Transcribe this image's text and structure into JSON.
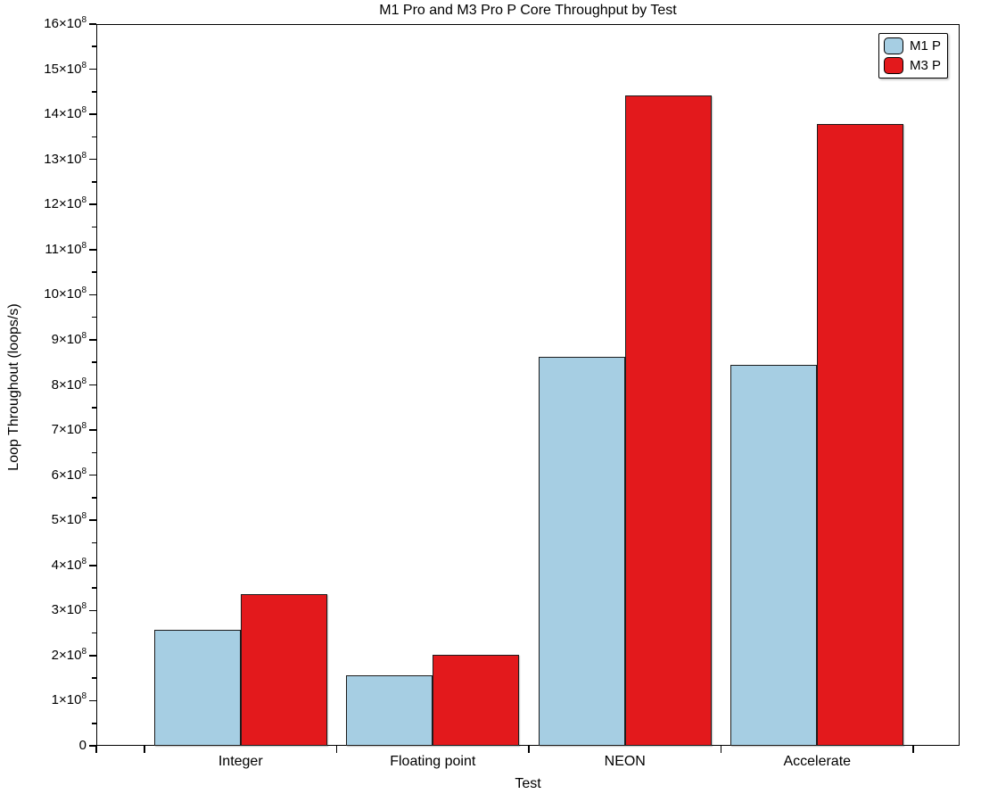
{
  "chart_data": {
    "type": "bar",
    "title": "M1 Pro and M3 Pro P Core Throughput by Test",
    "xlabel": "Test",
    "ylabel": "Loop Throughout (loops/s)",
    "categories": [
      "Integer",
      "Floating point",
      "NEON",
      "Accelerate"
    ],
    "series": [
      {
        "name": "M1 P",
        "color": "#A6CEE3",
        "values": [
          258000000,
          156000000,
          862000000,
          845000000
        ]
      },
      {
        "name": "M3 P",
        "color": "#E3191C",
        "values": [
          337000000,
          201000000,
          1441000000,
          1378000000
        ]
      }
    ],
    "ylim": [
      0,
      1600000000
    ],
    "y_major_step": 100000000,
    "y_minor_step": 50000000,
    "y_ticks": [
      {
        "value": 0,
        "label": "0"
      },
      {
        "value": 100000000,
        "label": "1×10^8"
      },
      {
        "value": 200000000,
        "label": "2×10^8"
      },
      {
        "value": 300000000,
        "label": "3×10^8"
      },
      {
        "value": 400000000,
        "label": "4×10^8"
      },
      {
        "value": 500000000,
        "label": "5×10^8"
      },
      {
        "value": 600000000,
        "label": "6×10^8"
      },
      {
        "value": 700000000,
        "label": "7×10^8"
      },
      {
        "value": 800000000,
        "label": "8×10^8"
      },
      {
        "value": 900000000,
        "label": "9×10^8"
      },
      {
        "value": 1000000000,
        "label": "10×10^8"
      },
      {
        "value": 1100000000,
        "label": "11×10^8"
      },
      {
        "value": 1200000000,
        "label": "12×10^8"
      },
      {
        "value": 1300000000,
        "label": "13×10^8"
      },
      {
        "value": 1400000000,
        "label": "14×10^8"
      },
      {
        "value": 1500000000,
        "label": "15×10^8"
      },
      {
        "value": 1600000000,
        "label": "16×10^8"
      }
    ],
    "grid": false,
    "legend_position": "top-right",
    "colors": {
      "background": "#ffffff",
      "axis": "#000000",
      "bar_edge": "#1c1c1c",
      "m1_fill": "#A6CEE3",
      "m3_fill": "#E3191C"
    }
  }
}
